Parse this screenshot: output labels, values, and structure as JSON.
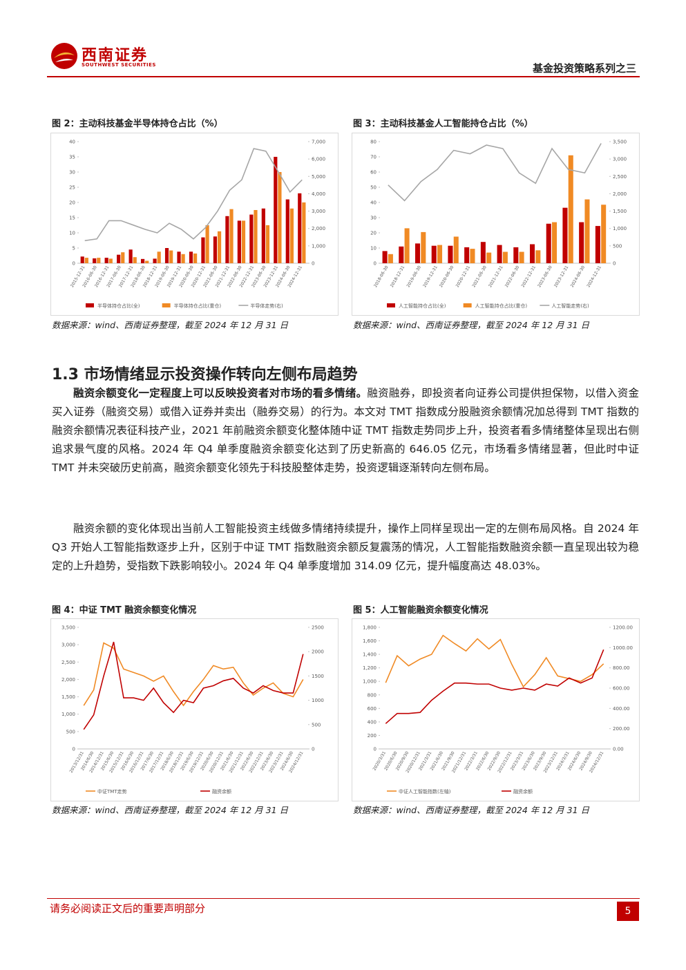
{
  "header": {
    "logo_cn": "西南证券",
    "logo_en": "SOUTHWEST SECURITIES",
    "series_title": "基金投资策略系列之三"
  },
  "figures": [
    {
      "title": "图 2：主动科技基金半导体持仓占比（%）",
      "source": "数据来源：wind、西南证券整理，截至 2024 年 12 月 31 日",
      "chart": {
        "type": "combo",
        "categories": [
          "2015-12-31",
          "2016-06-30",
          "2016-12-31",
          "2017-06-30",
          "2017-12-31",
          "2018-06-30",
          "2018-12-31",
          "2019-06-30",
          "2019-12-31",
          "2020-06-30",
          "2020-12-31",
          "2021-06-30",
          "2021-12-31",
          "2022-06-30",
          "2022-12-31",
          "2023-06-30",
          "2023-12-31",
          "2024-06-30",
          "2024-12-31"
        ],
        "series": [
          {
            "name": "半导体持仓占比(全)",
            "type": "bar",
            "color": "#c00000",
            "values": [
              2.2,
              1.6,
              1.8,
              2.8,
              4.5,
              1.4,
              1.5,
              5,
              3.8,
              3.8,
              8.5,
              8.8,
              15.5,
              14,
              16,
              18,
              35,
              21,
              23
            ]
          },
          {
            "name": "半导体持仓占比(重仓)",
            "type": "bar",
            "color": "#f08a24",
            "values": [
              1.8,
              1.8,
              1.5,
              3.6,
              2,
              0.8,
              3.8,
              4.2,
              3,
              3.2,
              12.5,
              10.5,
              17.8,
              14,
              17.5,
              12.5,
              30,
              18,
              20
            ]
          },
          {
            "name": "半导体走势(右)",
            "type": "line",
            "axis": "y2",
            "color": "#a6a6a6",
            "values": [
              1300,
              1400,
              2450,
              2450,
              2200,
              1950,
              1750,
              2300,
              1950,
              1400,
              2050,
              3000,
              4200,
              4800,
              6600,
              6450,
              5300,
              4100,
              4800
            ]
          }
        ],
        "ylim": [
          0,
          40
        ],
        "yticks": [
          0,
          5,
          10,
          15,
          20,
          25,
          30,
          35,
          40
        ],
        "y2lim": [
          0,
          7000
        ],
        "y2ticks": [
          0,
          {
            "value": 1000,
            "label": "1,000"
          },
          {
            "value": 2000,
            "label": "2,000"
          },
          {
            "value": 3000,
            "label": "3,000"
          },
          {
            "value": 4000,
            "label": "4,000"
          },
          {
            "value": 5000,
            "label": "5,000"
          },
          {
            "value": 6000,
            "label": "6,000"
          },
          {
            "value": 7000,
            "label": "7,000"
          }
        ]
      }
    },
    {
      "title": "图 3：主动科技基金人工智能持仓占比（%）",
      "source": "数据来源：wind、西南证券整理，截至 2024 年 12 月 31 日",
      "chart": {
        "type": "combo",
        "categories": [
          "2018-06-30",
          "2018-12-31",
          "2019-06-30",
          "2019-12-31",
          "2020-06-30",
          "2020-12-31",
          "2021-06-30",
          "2021-12-31",
          "2022-06-30",
          "2022-12-31",
          "2023-06-30",
          "2023-12-31",
          "2024-06-30",
          "2024-12-31"
        ],
        "series": [
          {
            "name": "人工智能持仓占比(全)",
            "type": "bar",
            "color": "#c00000",
            "values": [
              8,
              11,
              13,
              11.5,
              11.5,
              10.5,
              14,
              12,
              10.5,
              12.5,
              26,
              36.5,
              27,
              24.5
            ]
          },
          {
            "name": "人工智能持仓占比(重仓)",
            "type": "bar",
            "color": "#f08a24",
            "values": [
              6,
              23,
              20.5,
              12,
              17.5,
              9.5,
              7,
              7.5,
              7.5,
              8.5,
              27,
              71,
              42,
              38.5
            ]
          },
          {
            "name": "人工智能走势(右)",
            "type": "line",
            "axis": "y2",
            "color": "#a6a6a6",
            "values": [
              2250,
              1800,
              2350,
              2700,
              3250,
              3150,
              3400,
              3300,
              2600,
              2300,
              3300,
              2700,
              2600,
              3450
            ]
          }
        ],
        "ylim": [
          0,
          80
        ],
        "yticks": [
          0,
          10,
          20,
          30,
          40,
          50,
          60,
          70,
          80
        ],
        "y2lim": [
          0,
          3500
        ],
        "y2ticks": [
          0,
          500,
          {
            "value": 1000,
            "label": "1,000"
          },
          {
            "value": 1500,
            "label": "1,500"
          },
          {
            "value": 2000,
            "label": "2,000"
          },
          {
            "value": 2500,
            "label": "2,500"
          },
          {
            "value": 3000,
            "label": "3,000"
          },
          {
            "value": 3500,
            "label": "3,500"
          }
        ]
      }
    },
    {
      "title": "图 4：中证 TMT 融资余额变化情况",
      "source": "数据来源：wind、西南证券整理，截至 2024 年 12 月 31 日",
      "chart": {
        "type": "line",
        "categories": [
          "2013/12/31",
          "2014/6/30",
          "2014/12/31",
          "2015/6/30",
          "2015/12/31",
          "2016/6/30",
          "2016/12/31",
          "2017/6/30",
          "2017/12/31",
          "2018/6/30",
          "2018/12/31",
          "2019/6/30",
          "2019/12/31",
          "2020/6/30",
          "2020/12/31",
          "2021/6/30",
          "2021/12/31",
          "2022/6/30",
          "2022/12/31",
          "2023/6/30",
          "2023/12/31",
          "2024/6/30",
          "2024/12/31"
        ],
        "series": [
          {
            "name": "中证TMT走势",
            "color": "#f08a24",
            "values": [
              1250,
              1700,
              3050,
              2900,
              2300,
              2200,
              2100,
              1950,
              2100,
              1650,
              1250,
              1650,
              2000,
              2400,
              2300,
              2350,
              1900,
              1550,
              1750,
              1900,
              1600,
              1500,
              2000
            ]
          },
          {
            "name": "融资余额",
            "axis": "y2",
            "color": "#c00000",
            "values": [
              400,
              700,
              1500,
              2200,
              1050,
              1050,
              1000,
              1250,
              950,
              750,
              1000,
              950,
              1250,
              1300,
              1400,
              1450,
              1250,
              1150,
              1300,
              1200,
              1150,
              1150,
              1950
            ]
          }
        ],
        "ylim": [
          0,
          3500
        ],
        "yticks": [
          0,
          500,
          {
            "value": 1000,
            "label": "1,000"
          },
          {
            "value": 1500,
            "label": "1,500"
          },
          {
            "value": 2000,
            "label": "2,000"
          },
          {
            "value": 2500,
            "label": "2,500"
          },
          {
            "value": 3000,
            "label": "3,000"
          },
          {
            "value": 3500,
            "label": "3,500"
          }
        ],
        "y2lim": [
          0,
          2500
        ],
        "y2ticks": [
          0,
          500,
          1000,
          1500,
          2000,
          2500
        ]
      }
    },
    {
      "title": "图 5：人工智能融资余额变化情况",
      "source": "数据来源：wind、西南证券整理，截至 2024 年 12 月 31 日",
      "chart": {
        "type": "line",
        "categories": [
          "2020/3/31",
          "2020/6/30",
          "2020/9/30",
          "2020/12/31",
          "2021/3/31",
          "2021/6/30",
          "2021/9/30",
          "2021/12/31",
          "2022/3/31",
          "2022/6/30",
          "2022/9/30",
          "2022/12/31",
          "2023/3/31",
          "2023/6/30",
          "2023/9/30",
          "2023/12/31",
          "2024/3/31",
          "2024/6/30",
          "2024/9/30",
          "2024/12/31"
        ],
        "series": [
          {
            "name": "中证人工智能指数(左轴)",
            "color": "#f08a24",
            "values": [
              980,
              1380,
              1230,
              1330,
              1400,
              1680,
              1560,
              1450,
              1630,
              1480,
              1620,
              1250,
              920,
              1100,
              1350,
              1080,
              1040,
              1000,
              1100,
              1260
            ]
          },
          {
            "name": "融资余额",
            "axis": "y2",
            "color": "#c00000",
            "values": [
              250,
              350,
              350,
              360,
              480,
              570,
              650,
              650,
              640,
              640,
              600,
              580,
              600,
              580,
              640,
              620,
              700,
              650,
              700,
              980
            ]
          }
        ],
        "ylim": [
          0,
          1800
        ],
        "yticks": [
          0,
          200,
          400,
          600,
          800,
          {
            "value": 1000,
            "label": "1,000"
          },
          {
            "value": 1200,
            "label": "1,200"
          },
          {
            "value": 1400,
            "label": "1,400"
          },
          {
            "value": 1600,
            "label": "1,600"
          },
          {
            "value": 1800,
            "label": "1,800"
          }
        ],
        "y2lim": [
          0,
          1200
        ],
        "y2ticks": [
          {
            "value": 0,
            "label": "0.00"
          },
          {
            "value": 200,
            "label": "200.00"
          },
          {
            "value": 400,
            "label": "400.00"
          },
          {
            "value": 600,
            "label": "600.00"
          },
          {
            "value": 800,
            "label": "800.00"
          },
          {
            "value": 1000,
            "label": "1000.00"
          },
          {
            "value": 1200,
            "label": "1200.00"
          }
        ]
      }
    }
  ],
  "section": {
    "heading": "1.3 市场情绪显示投资操作转向左侧布局趋势",
    "paragraphs": [
      {
        "lead": "融资余额变化一定程度上可以反映投资者对市场的看多情绪。",
        "text": "融资融券，即投资者向证券公司提供担保物，以借入资金买入证券（融资交易）或借入证券并卖出（融券交易）的行为。本文对 TMT 指数成分股融资余额情况加总得到 TMT 指数的融资余额情况表征科技产业，2021 年前融资余额变化整体随中证 TMT 指数走势同步上升，投资者看多情绪整体呈现出右侧追求景气度的风格。2024 年 Q4 单季度融资余额变化达到了历史新高的 646.05 亿元，市场看多情绪显著，但此时中证 TMT 并未突破历史前高，融资余额变化领先于科技股整体走势，投资逻辑逐渐转向左侧布局。"
      },
      {
        "text": "融资余额的变化体现出当前人工智能投资主线做多情绪持续提升，操作上同样呈现出一定的左侧布局风格。自 2024 年 Q3 开始人工智能指数逐步上升，区别于中证 TMT 指数融资余额反复震荡的情况，人工智能指数融资余额一直呈现出较为稳定的上升趋势，受指数下跌影响较小。2024 年 Q4 单季度增加 314.09 亿元，提升幅度高达 48.03%。"
      }
    ]
  },
  "footer": {
    "disclaimer": "请务必阅读正文后的重要声明部分",
    "page": "5"
  }
}
